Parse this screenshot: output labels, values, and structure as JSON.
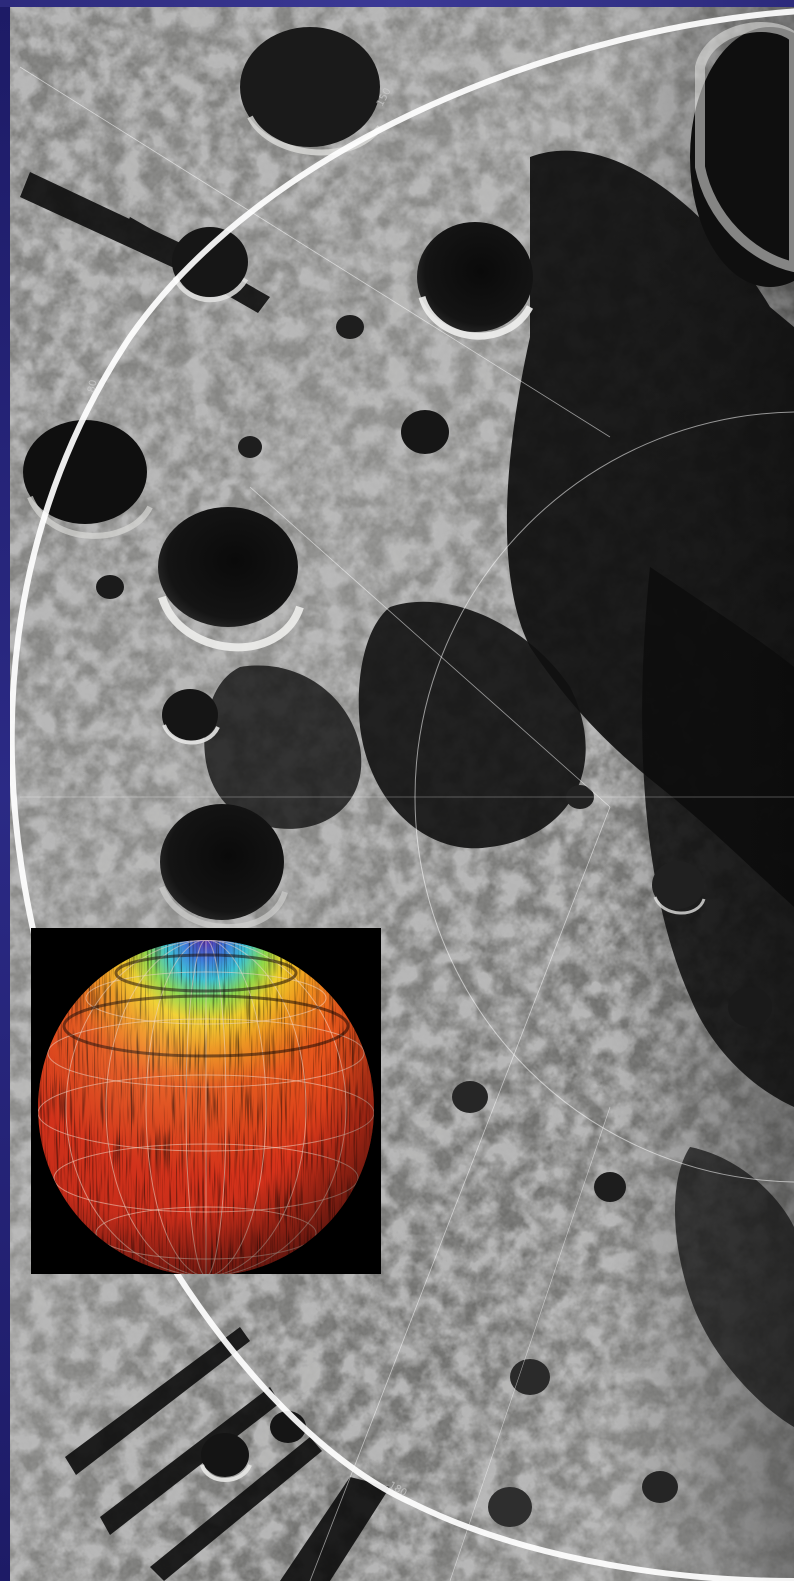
{
  "scene": {
    "main": "lunar-south-pole-mosaic",
    "inset": "temperature-globe"
  },
  "colors": {
    "frame_blue": "#2c2a7c",
    "lunar_gray": "#8a8a88",
    "shadow": "#101010",
    "globe_red": "#d8361c",
    "globe_orange": "#f07a1e",
    "globe_yellow": "#f4d22a",
    "globe_cyan": "#37b8e0",
    "globe_violet": "#6a3fb0"
  },
  "grid_labels": {
    "a": "150",
    "b": "80",
    "c": "180"
  }
}
